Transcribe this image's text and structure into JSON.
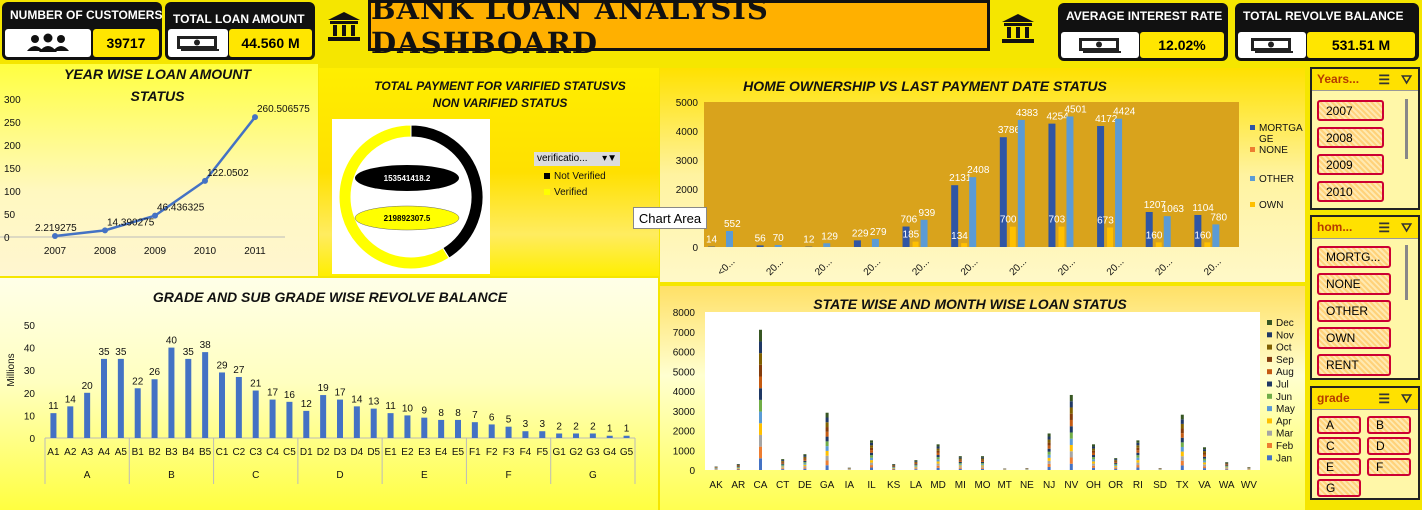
{
  "kpis": {
    "customers": {
      "title": "NUMBER OF CUSTOMERS",
      "value": "39717"
    },
    "loan": {
      "title": "TOTAL LOAN AMOUNT",
      "value": "44.560 M"
    },
    "interest": {
      "title": "AVERAGE INTEREST RATE",
      "value": "12.02%"
    },
    "revolve": {
      "title": "TOTAL REVOLVE BALANCE",
      "value": "531.51 M"
    }
  },
  "dashboard_title": "BANK LOAN ANALYSIS DASHBOARD",
  "tooltip": "Chart Area",
  "verification_filter": {
    "label": "verificatio...",
    "items": [
      "Not Verified",
      "Verified"
    ]
  },
  "slicers": {
    "years": {
      "title": "Years...",
      "items": [
        "2007",
        "2008",
        "2009",
        "2010"
      ]
    },
    "home": {
      "title": "hom...",
      "items": [
        "MORTG...",
        "NONE",
        "OTHER",
        "OWN",
        "RENT"
      ]
    },
    "grade": {
      "title": "grade",
      "items": [
        "A",
        "B",
        "C",
        "D",
        "E",
        "F",
        "G"
      ]
    }
  },
  "colors": {
    "accent": "#ffe600",
    "line": "#4472c4",
    "mortgage_bar": "#2f55a4",
    "other_bar": "#5b9bd5",
    "own_bar": "#ffc000",
    "home_bg": "#d9a31c"
  },
  "chart_data": [
    {
      "type": "line",
      "title": "YEAR WISE LOAN AMOUNT STATUS",
      "x": [
        "2007",
        "2008",
        "2009",
        "2010",
        "2011"
      ],
      "values": [
        2.219275,
        14.390275,
        46.436325,
        122.0502,
        260.506575
      ],
      "labels": [
        "2.219275",
        "14.390275",
        "46.436325",
        "122.0502",
        "260.506575"
      ],
      "ylim": [
        0,
        300
      ],
      "yticks": [
        0,
        50,
        100,
        150,
        200,
        250,
        300
      ]
    },
    {
      "type": "pie",
      "title": "TOTAL PAYMENT FOR VARIFIED STATUSVS NON VARIFIED STATUS",
      "categories": [
        "Not Verified",
        "Verified"
      ],
      "values": [
        153541418.2,
        219892307.5
      ],
      "labels": [
        "153541418.2",
        "219892307.5"
      ],
      "colors": [
        "#000000",
        "#ffff00"
      ]
    },
    {
      "type": "bar",
      "title": "HOME OWNERSHIP VS LAST PAYMENT DATE STATUS",
      "categories": [
        "<0...",
        "20...",
        "20...",
        "20...",
        "20...",
        "20...",
        "20...",
        "20...",
        "20...",
        "20...",
        "20..."
      ],
      "series": [
        {
          "name": "MORTGAGE",
          "values": [
            14,
            56,
            12,
            229,
            706,
            2131,
            3786,
            4254,
            4172,
            1207,
            1104
          ]
        },
        {
          "name": "NONE",
          "values": [
            0,
            0,
            0,
            0,
            0,
            0,
            0,
            0,
            0,
            0,
            0
          ]
        },
        {
          "name": "OTHER",
          "values": [
            552,
            70,
            129,
            279,
            939,
            2408,
            4383,
            4501,
            4424,
            1063,
            780
          ]
        },
        {
          "name": "OWN",
          "values": [
            0,
            0,
            0,
            0,
            185,
            134,
            700,
            703,
            673,
            160,
            160
          ]
        }
      ],
      "extra_labels": [
        "216",
        "422",
        "35"
      ],
      "ylim": [
        0,
        5000
      ],
      "yticks": [
        0,
        1000,
        2000,
        3000,
        4000,
        5000
      ],
      "legend": [
        "MORTGA GE",
        "NONE",
        "OTHER",
        "OWN"
      ]
    },
    {
      "type": "bar",
      "title": "GRADE AND SUB GRADE WISE REVOLVE BALANCE",
      "ylabel": "Millions",
      "categories": [
        "A1",
        "A2",
        "A3",
        "A4",
        "A5",
        "B1",
        "B2",
        "B3",
        "B4",
        "B5",
        "C1",
        "C2",
        "C3",
        "C4",
        "C5",
        "D1",
        "D2",
        "D3",
        "D4",
        "D5",
        "E1",
        "E2",
        "E3",
        "E4",
        "E5",
        "F1",
        "F2",
        "F3",
        "F4",
        "F5",
        "G1",
        "G2",
        "G3",
        "G4",
        "G5"
      ],
      "groups": [
        "A",
        "B",
        "C",
        "D",
        "E",
        "F",
        "G"
      ],
      "values": [
        11,
        14,
        20,
        35,
        35,
        22,
        26,
        40,
        35,
        38,
        29,
        27,
        21,
        17,
        16,
        12,
        19,
        17,
        14,
        13,
        11,
        10,
        9,
        8,
        8,
        7,
        6,
        5,
        3,
        3,
        2,
        2,
        2,
        1,
        1
      ],
      "labels": [
        "11",
        "14",
        "20",
        "35",
        "35",
        "22",
        "26",
        "40",
        "35",
        "38",
        "29",
        "27",
        "21",
        "17",
        "16",
        "12",
        "19",
        "17",
        "14",
        "13",
        "11",
        "10",
        "9",
        "8",
        "8",
        "7",
        "6",
        "5",
        "3",
        "3",
        "2",
        "2",
        "2",
        "1",
        "1"
      ],
      "ylim": [
        0,
        50
      ],
      "yticks": [
        0,
        10,
        20,
        30,
        40,
        50
      ]
    },
    {
      "type": "bar",
      "stacked": true,
      "title": "STATE WISE AND MONTH WISE LOAN STATUS",
      "categories": [
        "AK",
        "AR",
        "CA",
        "CT",
        "DE",
        "GA",
        "IA",
        "IL",
        "KS",
        "LA",
        "MD",
        "MI",
        "MO",
        "MT",
        "NE",
        "NJ",
        "NV",
        "OH",
        "OR",
        "RI",
        "SD",
        "TX",
        "VA",
        "WA",
        "WV"
      ],
      "values": [
        180,
        300,
        7100,
        550,
        800,
        2900,
        120,
        1500,
        300,
        500,
        1300,
        700,
        700,
        80,
        100,
        1850,
        3800,
        1300,
        600,
        1500,
        100,
        2800,
        1150,
        400,
        150
      ],
      "legend": [
        "Dec",
        "Nov",
        "Oct",
        "Sep",
        "Aug",
        "Jul",
        "Jun",
        "May",
        "Apr",
        "Mar",
        "Feb",
        "Jan"
      ],
      "legend_colors": [
        "#375623",
        "#203864",
        "#806000",
        "#843c0c",
        "#c55a11",
        "#1f3864",
        "#70ad47",
        "#5b9bd5",
        "#ffc000",
        "#a5a5a5",
        "#ed7d31",
        "#4472c4"
      ],
      "ylim": [
        0,
        8000
      ],
      "yticks": [
        0,
        1000,
        2000,
        3000,
        4000,
        5000,
        6000,
        7000,
        8000
      ]
    }
  ]
}
